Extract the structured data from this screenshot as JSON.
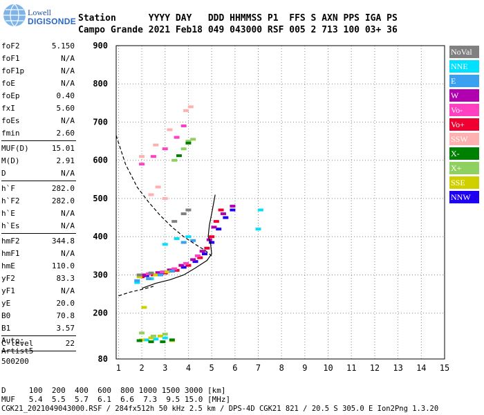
{
  "logo": {
    "line1": "Lowell",
    "line2": "DIGISONDE"
  },
  "header": {
    "labels": "Station      YYYY DAY   DDD HHMMSS P1  FFS S AXN PPS IGA PS",
    "values": "Campo Grande 2021 Feb18 049 043000 RSF 005 2 713 100 03+ 36"
  },
  "params": {
    "foF2": {
      "label": "foF2",
      "value": "5.150"
    },
    "foF1": {
      "label": "foF1",
      "value": "N/A"
    },
    "foF1p": {
      "label": "foF1p",
      "value": "N/A"
    },
    "foE": {
      "label": "foE",
      "value": "N/A"
    },
    "foEp": {
      "label": "foEp",
      "value": "0.40"
    },
    "fxI": {
      "label": "fxI",
      "value": "5.60"
    },
    "foEs": {
      "label": "foEs",
      "value": "N/A"
    },
    "fmin": {
      "label": "fmin",
      "value": "2.60"
    },
    "MUFD": {
      "label": "MUF(D)",
      "value": "15.01"
    },
    "MD": {
      "label": "M(D)",
      "value": "2.91"
    },
    "D": {
      "label": "D",
      "value": "N/A"
    },
    "hF": {
      "label": "h`F",
      "value": "282.0"
    },
    "hF2": {
      "label": "h`F2",
      "value": "282.0"
    },
    "hE": {
      "label": "h`E",
      "value": "N/A"
    },
    "hEs": {
      "label": "h`Es",
      "value": "N/A"
    },
    "hmF2": {
      "label": "hmF2",
      "value": "344.8"
    },
    "hmF1": {
      "label": "hmF1",
      "value": "N/A"
    },
    "hmE": {
      "label": "hmE",
      "value": "110.0"
    },
    "yF2": {
      "label": "yF2",
      "value": "83.3"
    },
    "yF1": {
      "label": "yF1",
      "value": "N/A"
    },
    "yE": {
      "label": "yE",
      "value": "20.0"
    },
    "B0": {
      "label": "B0",
      "value": "70.8"
    },
    "B1": {
      "label": "B1",
      "value": "3.57"
    },
    "Clevel": {
      "label": "C-level",
      "value": "22"
    }
  },
  "extra": {
    "auto": "Auto:",
    "artist": "Artist5",
    "code": "500200"
  },
  "legend": [
    {
      "label": "NoVal",
      "color": "#808080"
    },
    {
      "label": "NNE",
      "color": "#00e0ff"
    },
    {
      "label": "E",
      "color": "#3aa0f0"
    },
    {
      "label": "W",
      "color": "#b000b0"
    },
    {
      "label": "Vo-",
      "color": "#ff40c0"
    },
    {
      "label": "Vo+",
      "color": "#f00030"
    },
    {
      "label": "SSW",
      "color": "#ffb0b0"
    },
    {
      "label": "X-",
      "color": "#008000"
    },
    {
      "label": "X+",
      "color": "#8fd060"
    },
    {
      "label": "SSE",
      "color": "#d0d000"
    },
    {
      "label": "NNW",
      "color": "#2000f0"
    }
  ],
  "bottom": {
    "d_row": "D     100  200  400  600  800 1000 1500 3000 [km]",
    "muf_row": "MUF   5.4  5.5  5.7  6.1  6.6  7.3  9.5 15.0 [MHz]",
    "status": "CGK21_2021049043000.RSF / 284fx512h 50 kHz 2.5 km / DPS-4D CGK21 821 / 20.5 S 305.0 E Ion2Png 1.3.20"
  },
  "chart_data": {
    "type": "scatter",
    "title": "",
    "xlabel": "",
    "ylabel": "",
    "xlim": [
      0.9,
      15.0
    ],
    "ylim": [
      80,
      900
    ],
    "xticks": [
      "1",
      "2",
      "3",
      "4",
      "5",
      "6",
      "7",
      "8",
      "9",
      "10",
      "11",
      "12",
      "13",
      "14",
      "15"
    ],
    "yticks": [
      "80",
      "200",
      "300",
      "400",
      "500",
      "600",
      "700",
      "800",
      "900"
    ],
    "grid": true,
    "series": [
      {
        "name": "Vo+",
        "color": "#f00030",
        "points": [
          [
            2.0,
            295
          ],
          [
            2.5,
            300
          ],
          [
            3.0,
            305
          ],
          [
            3.5,
            312
          ],
          [
            4.0,
            325
          ],
          [
            4.5,
            345
          ],
          [
            4.8,
            370
          ],
          [
            5.0,
            400
          ],
          [
            5.2,
            440
          ],
          [
            5.4,
            470
          ]
        ]
      },
      {
        "name": "NNW",
        "color": "#2000f0",
        "points": [
          [
            2.2,
            298
          ],
          [
            2.8,
            303
          ],
          [
            3.3,
            310
          ],
          [
            3.8,
            320
          ],
          [
            4.3,
            335
          ],
          [
            4.7,
            355
          ],
          [
            5.0,
            385
          ],
          [
            5.3,
            420
          ],
          [
            5.6,
            450
          ],
          [
            5.9,
            470
          ]
        ]
      },
      {
        "name": "W",
        "color": "#b000b0",
        "points": [
          [
            2.1,
            300
          ],
          [
            2.7,
            306
          ],
          [
            3.2,
            313
          ],
          [
            3.7,
            325
          ],
          [
            4.2,
            340
          ],
          [
            4.6,
            362
          ],
          [
            4.9,
            392
          ],
          [
            5.1,
            425
          ],
          [
            5.5,
            460
          ],
          [
            5.9,
            480
          ]
        ]
      },
      {
        "name": "Vo-",
        "color": "#ff40c0",
        "points": [
          [
            2.3,
            303
          ],
          [
            2.9,
            308
          ],
          [
            3.4,
            316
          ],
          [
            3.9,
            330
          ],
          [
            4.4,
            350
          ],
          [
            2.0,
            590
          ],
          [
            2.5,
            610
          ],
          [
            3.0,
            630
          ],
          [
            3.5,
            660
          ],
          [
            3.8,
            690
          ]
        ]
      },
      {
        "name": "NNE",
        "color": "#00e0ff",
        "points": [
          [
            1.8,
            280
          ],
          [
            2.4,
            290
          ],
          [
            3.0,
            380
          ],
          [
            3.5,
            395
          ],
          [
            4.0,
            400
          ],
          [
            2.2,
            130
          ],
          [
            2.6,
            132
          ],
          [
            3.0,
            135
          ],
          [
            7.0,
            420
          ],
          [
            7.1,
            470
          ]
        ]
      },
      {
        "name": "SSE",
        "color": "#d0d000",
        "points": [
          [
            1.9,
            295
          ],
          [
            2.6,
            300
          ],
          [
            3.1,
            308
          ],
          [
            2.0,
            130
          ],
          [
            2.4,
            135
          ],
          [
            2.8,
            140
          ],
          [
            3.3,
            128
          ],
          [
            2.1,
            215
          ]
        ]
      },
      {
        "name": "X+",
        "color": "#8fd060",
        "points": [
          [
            2.0,
            148
          ],
          [
            2.5,
            140
          ],
          [
            3.0,
            145
          ],
          [
            3.4,
            600
          ],
          [
            3.8,
            630
          ],
          [
            4.0,
            650
          ],
          [
            4.2,
            655
          ]
        ]
      },
      {
        "name": "X-",
        "color": "#008000",
        "points": [
          [
            1.9,
            128
          ],
          [
            2.4,
            125
          ],
          [
            2.9,
            125
          ],
          [
            3.3,
            130
          ],
          [
            3.6,
            612
          ],
          [
            4.0,
            645
          ]
        ]
      },
      {
        "name": "SSW",
        "color": "#ffb0b0",
        "points": [
          [
            2.4,
            510
          ],
          [
            2.7,
            530
          ],
          [
            3.0,
            500
          ],
          [
            2.0,
            610
          ],
          [
            2.6,
            640
          ],
          [
            3.2,
            680
          ],
          [
            3.9,
            730
          ],
          [
            4.1,
            740
          ]
        ]
      },
      {
        "name": "E",
        "color": "#3aa0f0",
        "points": [
          [
            1.8,
            285
          ],
          [
            2.3,
            290
          ],
          [
            2.8,
            300
          ],
          [
            3.3,
            310
          ],
          [
            3.8,
            385
          ],
          [
            4.2,
            390
          ]
        ]
      },
      {
        "name": "NoVal",
        "color": "#808080",
        "points": [
          [
            1.9,
            300
          ],
          [
            2.4,
            305
          ],
          [
            3.4,
            440
          ],
          [
            3.8,
            460
          ],
          [
            4.0,
            470
          ]
        ]
      }
    ],
    "lines": [
      {
        "name": "profile",
        "style": "solid",
        "points": [
          [
            2.0,
            265
          ],
          [
            2.6,
            278
          ],
          [
            3.2,
            287
          ],
          [
            3.8,
            300
          ],
          [
            4.3,
            318
          ],
          [
            4.8,
            338
          ],
          [
            5.0,
            355
          ],
          [
            4.95,
            385
          ],
          [
            4.85,
            400
          ],
          [
            4.9,
            430
          ],
          [
            5.0,
            460
          ],
          [
            5.15,
            510
          ]
        ]
      },
      {
        "name": "mufcurve",
        "style": "dashed",
        "points": [
          [
            0.9,
            665
          ],
          [
            1.3,
            590
          ],
          [
            1.8,
            530
          ],
          [
            2.3,
            490
          ],
          [
            2.8,
            455
          ],
          [
            3.3,
            425
          ],
          [
            3.8,
            400
          ],
          [
            4.3,
            380
          ],
          [
            4.7,
            365
          ],
          [
            5.0,
            350
          ]
        ]
      },
      {
        "name": "lowcurve",
        "style": "dashed",
        "points": [
          [
            1.0,
            245
          ],
          [
            1.5,
            255
          ],
          [
            2.0,
            262
          ],
          [
            2.5,
            270
          ]
        ]
      }
    ]
  }
}
